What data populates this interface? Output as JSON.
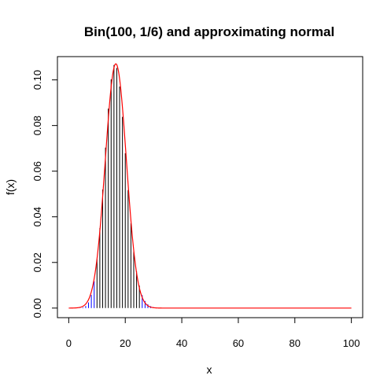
{
  "chart_data": {
    "type": "line",
    "title": "Bin(100, 1/6) and approximating normal",
    "xlabel": "x",
    "ylabel": "f(x)",
    "xlim": [
      -4,
      104
    ],
    "ylim": [
      -0.0042,
      0.1102
    ],
    "x_ticks": [
      0,
      20,
      40,
      60,
      80,
      100
    ],
    "x_tick_labels": [
      "0",
      "20",
      "40",
      "60",
      "80",
      "100"
    ],
    "y_ticks": [
      0.0,
      0.02,
      0.04,
      0.06,
      0.08,
      0.1
    ],
    "y_tick_labels": [
      "0.00",
      "0.02",
      "0.04",
      "0.06",
      "0.08",
      "0.10"
    ],
    "grid": false,
    "legend": "none",
    "binomial": {
      "n": 100,
      "p": 0.16666667
    },
    "series": [
      {
        "kind": "pmf-spikes",
        "color_primary": "#000000",
        "color_tails": "#0000ff",
        "tail_split": [
          10,
          25
        ]
      },
      {
        "kind": "normal-density",
        "mean": 16.667,
        "sd": 3.727,
        "color": "#ff0000"
      }
    ]
  }
}
